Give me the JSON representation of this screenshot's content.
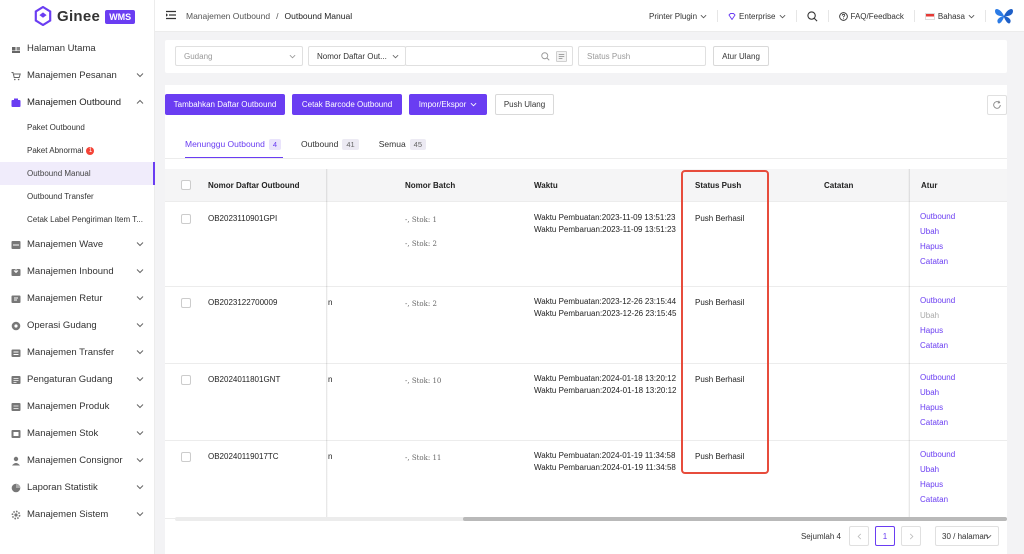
{
  "app": {
    "brand": "Ginee",
    "badge": "WMS"
  },
  "sidebar": {
    "items": [
      {
        "label": "Halaman Utama",
        "icon": "home-icon"
      },
      {
        "label": "Manajemen Pesanan",
        "icon": "cart-icon",
        "chevron": "down"
      },
      {
        "label": "Manajemen Outbound",
        "icon": "outbound-icon",
        "chevron": "up"
      },
      {
        "label": "Manajemen Wave",
        "icon": "wave-icon",
        "chevron": "down"
      },
      {
        "label": "Manajemen Inbound",
        "icon": "inbound-icon",
        "chevron": "down"
      },
      {
        "label": "Manajemen Retur",
        "icon": "return-icon",
        "chevron": "down"
      },
      {
        "label": "Operasi Gudang",
        "icon": "warehouse-icon",
        "chevron": "down"
      },
      {
        "label": "Manajemen Transfer",
        "icon": "transfer-icon",
        "chevron": "down"
      },
      {
        "label": "Pengaturan Gudang",
        "icon": "settings-icon",
        "chevron": "down"
      },
      {
        "label": "Manajemen Produk",
        "icon": "product-icon",
        "chevron": "down"
      },
      {
        "label": "Manajemen Stok",
        "icon": "stock-icon",
        "chevron": "down"
      },
      {
        "label": "Manajemen Consignor",
        "icon": "user-icon",
        "chevron": "down"
      },
      {
        "label": "Laporan Statistik",
        "icon": "report-icon",
        "chevron": "down"
      },
      {
        "label": "Manajemen Sistem",
        "icon": "gear-icon",
        "chevron": "down"
      }
    ],
    "sub_items": [
      {
        "label": "Paket Outbound"
      },
      {
        "label": "Paket Abnormal",
        "badge": "1"
      },
      {
        "label": "Outbound Manual",
        "active": true
      },
      {
        "label": "Outbound Transfer"
      },
      {
        "label": "Cetak Label Pengiriman Item T..."
      }
    ]
  },
  "header": {
    "breadcrumb": [
      "Manajemen Outbound",
      "/",
      "Outbound Manual"
    ],
    "printer_plugin": "Printer Plugin",
    "enterprise": "Enterprise",
    "faq": "FAQ/Feedback",
    "language": "Bahasa"
  },
  "filters": {
    "warehouse_placeholder": "Gudang",
    "list_type": "Nomor Daftar Out...",
    "search_value": "",
    "push_status_placeholder": "Status Push",
    "reset_label": "Atur Ulang"
  },
  "toolbar": {
    "add_label": "Tambahkan Daftar Outbound",
    "print_barcode_label": "Cetak Barcode Outbound",
    "import_export_label": "Impor/Ekspor",
    "repush_label": "Push Ulang"
  },
  "tabs": [
    {
      "label": "Menunggu Outbound",
      "count": "4",
      "active": true
    },
    {
      "label": "Outbound",
      "count": "41"
    },
    {
      "label": "Semua",
      "count": "45"
    }
  ],
  "table": {
    "columns": [
      "Nomor Daftar Outbound",
      "Nomor Batch",
      "Waktu",
      "Status Push",
      "Catatan",
      "Atur"
    ],
    "rows": [
      {
        "order_no": "OB2023110901GPI",
        "ghost": "",
        "batches": [
          "-, Stok: 1",
          "-, Stok: 2"
        ],
        "created": "Waktu Pembuatan:2023-11-09 13:51:23",
        "updated": "Waktu Pembaruan:2023-11-09 13:51:23",
        "push_status": "Push Berhasil",
        "actions": [
          {
            "label": "Outbound",
            "enabled": true
          },
          {
            "label": "Ubah",
            "enabled": true
          },
          {
            "label": "Hapus",
            "enabled": true
          },
          {
            "label": "Catatan",
            "enabled": true
          }
        ]
      },
      {
        "order_no": "OB2023122700009",
        "ghost": "n",
        "batches": [
          "-, Stok: 2"
        ],
        "created": "Waktu Pembuatan:2023-12-26 23:15:44",
        "updated": "Waktu Pembaruan:2023-12-26 23:15:45",
        "push_status": "Push Berhasil",
        "actions": [
          {
            "label": "Outbound",
            "enabled": true
          },
          {
            "label": "Ubah",
            "enabled": false
          },
          {
            "label": "Hapus",
            "enabled": true
          },
          {
            "label": "Catatan",
            "enabled": true
          }
        ]
      },
      {
        "order_no": "OB2024011801GNT",
        "ghost": "n",
        "batches": [
          "-, Stok: 10"
        ],
        "created": "Waktu Pembuatan:2024-01-18 13:20:12",
        "updated": "Waktu Pembaruan:2024-01-18 13:20:12",
        "push_status": "Push Berhasil",
        "actions": [
          {
            "label": "Outbound",
            "enabled": true
          },
          {
            "label": "Ubah",
            "enabled": true
          },
          {
            "label": "Hapus",
            "enabled": true
          },
          {
            "label": "Catatan",
            "enabled": true
          }
        ]
      },
      {
        "order_no": "OB20240119017TC",
        "ghost": "n",
        "batches": [
          "-, Stok: 11"
        ],
        "created": "Waktu Pembuatan:2024-01-19 11:34:58",
        "updated": "Waktu Pembaruan:2024-01-19 11:34:58",
        "push_status": "Push Berhasil",
        "actions": [
          {
            "label": "Outbound",
            "enabled": true
          },
          {
            "label": "Ubah",
            "enabled": true
          },
          {
            "label": "Hapus",
            "enabled": true
          },
          {
            "label": "Catatan",
            "enabled": true
          }
        ]
      }
    ]
  },
  "pagination": {
    "total_label": "Sejumlah 4",
    "current_page": "1",
    "page_size": "30 / halaman"
  },
  "colors": {
    "accent": "#6a3df2",
    "highlight": "#e74c3c",
    "badge": "#f44336"
  }
}
